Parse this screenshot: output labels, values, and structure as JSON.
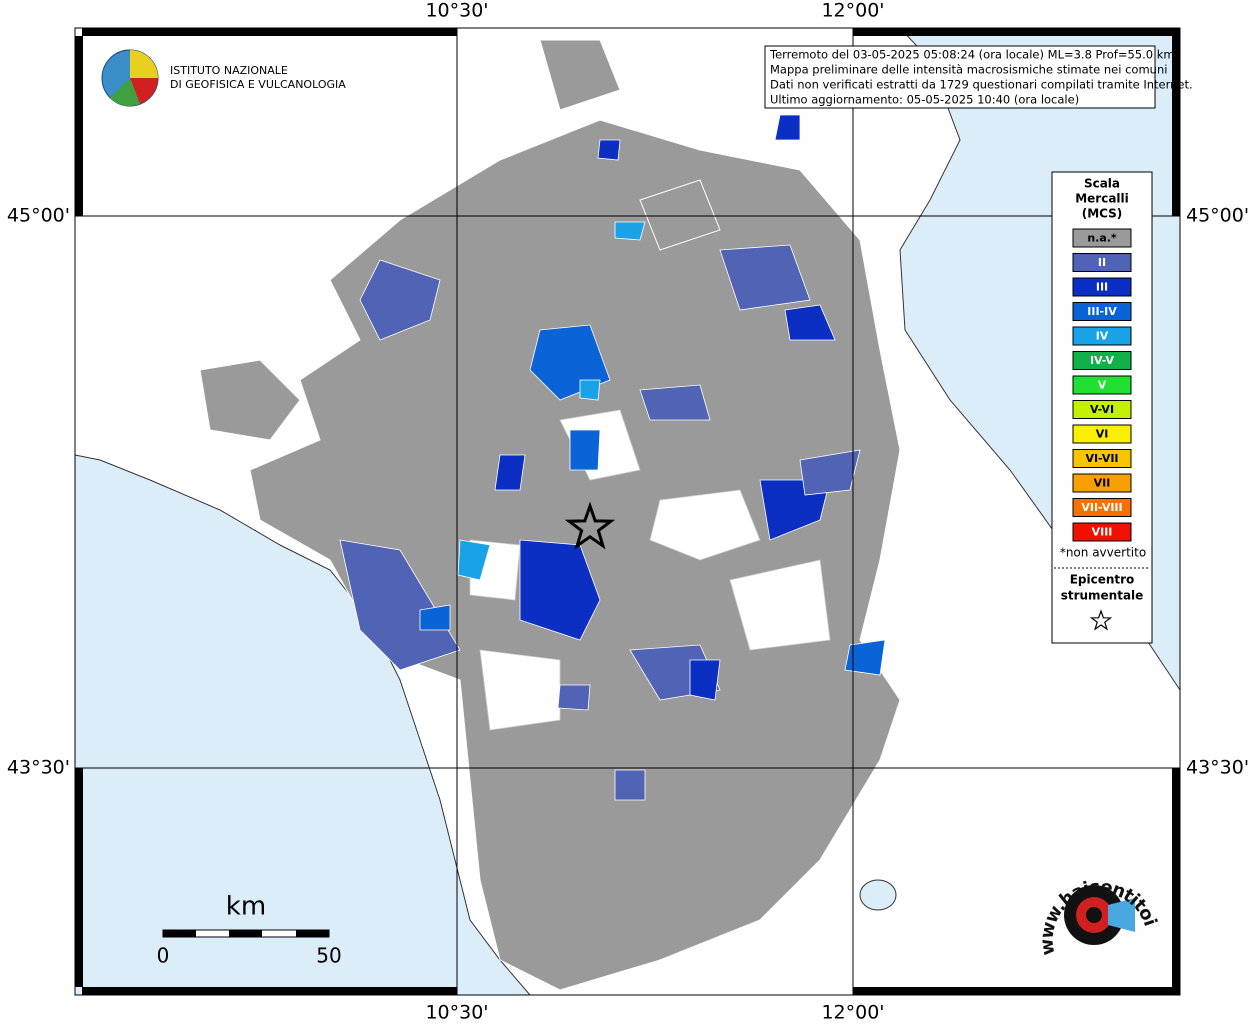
{
  "axes": {
    "top": [
      "10°30'",
      "12°00'"
    ],
    "bottom": [
      "10°30'",
      "12°00'"
    ],
    "left": [
      "45°00'",
      "43°30'"
    ],
    "right": [
      "45°00'",
      "43°30'"
    ]
  },
  "info": [
    "Terremoto del 03-05-2025 05:08:24 (ora locale) ML=3.8 Prof=55.0 km",
    "Mappa preliminare delle intensità macrosismiche stimate nei comuni",
    "Dati non verificati estratti da 1729 questionari compilati tramite Internet.",
    "Ultimo aggiornamento: 05-05-2025 10:40 (ora locale)"
  ],
  "logo": [
    "ISTITUTO NAZIONALE",
    "DI GEOFISICA E VULCANOLOGIA"
  ],
  "legend": {
    "title": [
      "Scala",
      "Mercalli",
      "(MCS)"
    ],
    "items": [
      {
        "label": "n.a.*",
        "color": "#9a9a9a"
      },
      {
        "label": "II",
        "color": "#5063b4"
      },
      {
        "label": "III",
        "color": "#0b2fc2"
      },
      {
        "label": "III-IV",
        "color": "#0b63d8"
      },
      {
        "label": "IV",
        "color": "#1aa2e8"
      },
      {
        "label": "IV-V",
        "color": "#12b048"
      },
      {
        "label": "V",
        "color": "#22e032"
      },
      {
        "label": "V-VI",
        "color": "#c4f000"
      },
      {
        "label": "VI",
        "color": "#f8f000"
      },
      {
        "label": "VI-VII",
        "color": "#f8c400"
      },
      {
        "label": "VII",
        "color": "#f8a000"
      },
      {
        "label": "VII-VIII",
        "color": "#f87000"
      },
      {
        "label": "VIII",
        "color": "#f01000"
      }
    ],
    "note": "*non avvertito",
    "epicenter": [
      "Epicentro",
      "strumentale"
    ]
  },
  "scale": {
    "unit": "km",
    "labels": [
      "0",
      "50"
    ]
  },
  "watermark": "www.haisentitoilterremoto.it"
}
